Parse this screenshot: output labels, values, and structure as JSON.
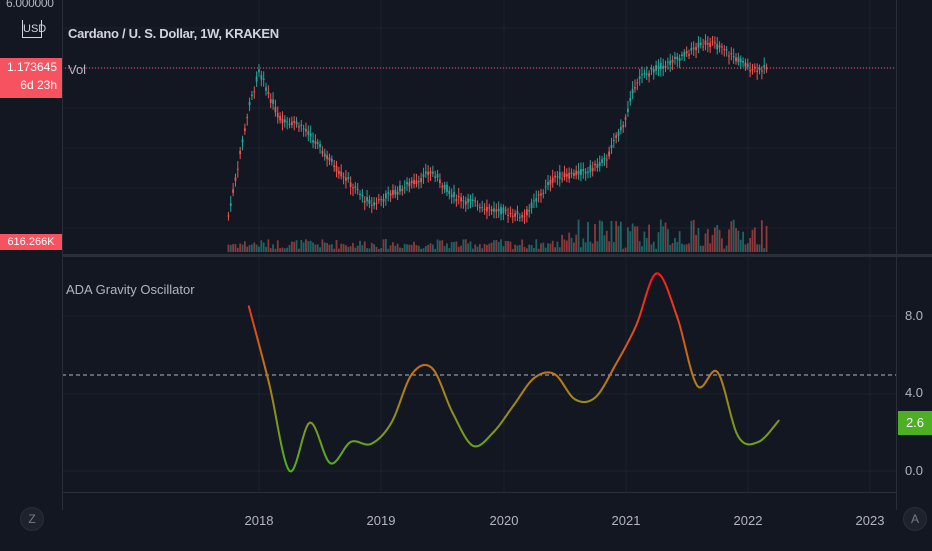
{
  "header": {
    "title": "Cardano / U. S. Dollar, 1W, KRAKEN",
    "vol_label": "Vol"
  },
  "left_scale": {
    "top_price": "6.000000",
    "currency": "USD",
    "price_value": "1.173645",
    "countdown": "6d 23h",
    "volume_value": "616.266K"
  },
  "oscillator": {
    "title": "ADA Gravity Oscillator",
    "ticks": [
      "8.0",
      "4.0",
      "0.0"
    ],
    "current_value": "2.6"
  },
  "time_axis": {
    "years": [
      "2018",
      "2019",
      "2020",
      "2021",
      "2022",
      "2023"
    ]
  },
  "buttons": {
    "left_corner": "Z",
    "right_corner": "A"
  },
  "colors": {
    "background": "#131722",
    "grid": "#1e2230",
    "up": "#26a69a",
    "down": "#ef5350",
    "price_line": "#f7525f",
    "osc_low": "#4caf24",
    "osc_high": "#ff1a1a"
  },
  "chart_data": [
    {
      "type": "line",
      "series_kind": "candlestick",
      "x": [
        "2017-10",
        "2017-12",
        "2018-01",
        "2018-03",
        "2018-05",
        "2018-08",
        "2018-11",
        "2018-12",
        "2019-03",
        "2019-06",
        "2019-08",
        "2019-12",
        "2020-03",
        "2020-06",
        "2020-09",
        "2020-11",
        "2021-01",
        "2021-02",
        "2021-04",
        "2021-06",
        "2021-09",
        "2021-11",
        "2022-01",
        "2022-03"
      ],
      "y": [
        0.03,
        0.45,
        1.1,
        0.35,
        0.3,
        0.12,
        0.05,
        0.04,
        0.06,
        0.09,
        0.05,
        0.035,
        0.03,
        0.08,
        0.09,
        0.12,
        0.35,
        0.9,
        1.2,
        1.5,
        2.4,
        1.8,
        1.25,
        1.17
      ],
      "ylim": [
        0,
        6
      ]
    },
    {
      "type": "line",
      "title": "ADA Gravity Oscillator",
      "x": [
        "2017-12",
        "2018-02",
        "2018-04",
        "2018-06",
        "2018-08",
        "2018-10",
        "2018-12",
        "2019-02",
        "2019-04",
        "2019-06",
        "2019-08",
        "2019-10",
        "2019-12",
        "2020-02",
        "2020-04",
        "2020-06",
        "2020-08",
        "2020-10",
        "2020-12",
        "2021-02",
        "2021-04",
        "2021-06",
        "2021-08",
        "2021-10",
        "2021-12",
        "2022-02",
        "2022-04"
      ],
      "y": [
        8.5,
        4.5,
        0.0,
        2.5,
        0.4,
        1.5,
        1.4,
        2.5,
        5.0,
        5.3,
        3.0,
        1.3,
        2.0,
        3.4,
        4.8,
        5.0,
        3.7,
        3.8,
        5.5,
        7.5,
        10.2,
        8.0,
        4.4,
        5.1,
        1.8,
        1.5,
        2.6
      ],
      "ylim": [
        -0.5,
        10.5
      ],
      "reference_line": 5.0
    }
  ]
}
